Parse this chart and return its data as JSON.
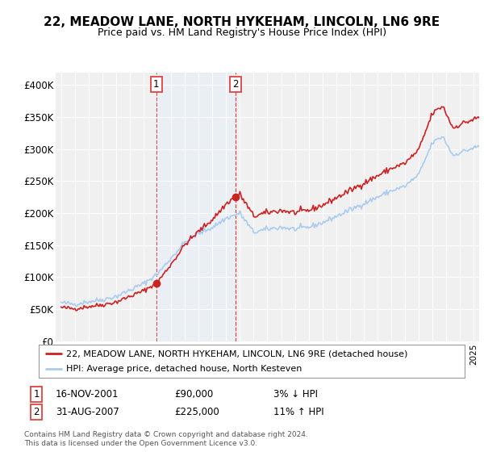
{
  "title": "22, MEADOW LANE, NORTH HYKEHAM, LINCOLN, LN6 9RE",
  "subtitle": "Price paid vs. HM Land Registry's House Price Index (HPI)",
  "legend_line1": "22, MEADOW LANE, NORTH HYKEHAM, LINCOLN, LN6 9RE (detached house)",
  "legend_line2": "HPI: Average price, detached house, North Kesteven",
  "annotation1_date": "16-NOV-2001",
  "annotation1_price": "£90,000",
  "annotation1_hpi": "3% ↓ HPI",
  "annotation2_date": "31-AUG-2007",
  "annotation2_price": "£225,000",
  "annotation2_hpi": "11% ↑ HPI",
  "footer1": "Contains HM Land Registry data © Crown copyright and database right 2024.",
  "footer2": "This data is licensed under the Open Government Licence v3.0.",
  "sale1_year": 2001.88,
  "sale1_value": 90000,
  "sale2_year": 2007.66,
  "sale2_value": 225000,
  "hpi_color": "#aaccee",
  "price_color": "#cc2222",
  "shade_color": "#ddeeff",
  "annotation_line_color": "#dd4444",
  "ylim_min": 0,
  "ylim_max": 420000,
  "yticks": [
    0,
    50000,
    100000,
    150000,
    200000,
    250000,
    300000,
    350000,
    400000
  ],
  "ytick_labels": [
    "£0",
    "£50K",
    "£100K",
    "£150K",
    "£200K",
    "£250K",
    "£300K",
    "£350K",
    "£400K"
  ],
  "background_color": "#ffffff",
  "plot_bg_color": "#f0f0f0",
  "title_fontsize": 11,
  "subtitle_fontsize": 9
}
